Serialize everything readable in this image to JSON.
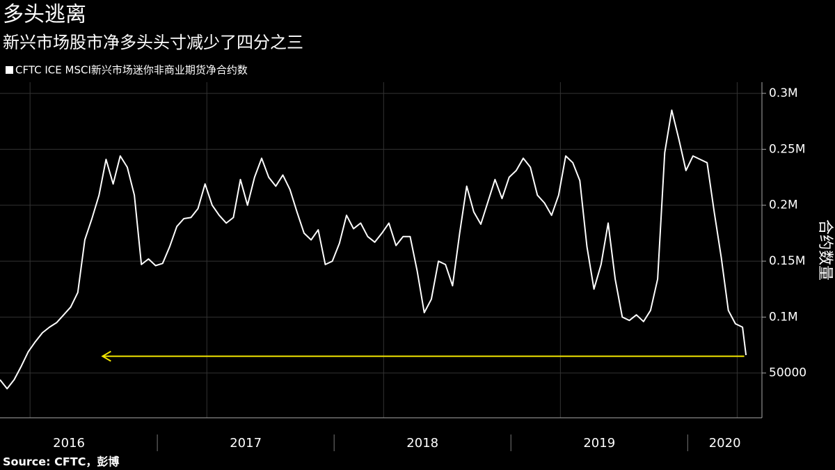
{
  "chart_data": {
    "type": "line",
    "title": "多头逃离",
    "subtitle": "新兴市场股市净多头头寸减少了四分之三",
    "y_axis_label": "合约数量",
    "source": "Source: CFTC，彭博",
    "series": [
      {
        "name": "CFTC ICE MSCI新兴市场迷你非商业期货净合约数",
        "color": "#ffffff",
        "x": [
          2016.11,
          2016.15,
          2016.19,
          2016.23,
          2016.27,
          2016.31,
          2016.35,
          2016.39,
          2016.43,
          2016.47,
          2016.51,
          2016.55,
          2016.59,
          2016.63,
          2016.67,
          2016.71,
          2016.75,
          2016.79,
          2016.83,
          2016.87,
          2016.91,
          2016.95,
          2016.99,
          2017.03,
          2017.07,
          2017.11,
          2017.15,
          2017.19,
          2017.23,
          2017.27,
          2017.31,
          2017.35,
          2017.39,
          2017.43,
          2017.47,
          2017.51,
          2017.55,
          2017.59,
          2017.63,
          2017.67,
          2017.71,
          2017.75,
          2017.79,
          2017.83,
          2017.87,
          2017.91,
          2017.95,
          2017.99,
          2018.03,
          2018.07,
          2018.11,
          2018.15,
          2018.19,
          2018.23,
          2018.27,
          2018.31,
          2018.35,
          2018.39,
          2018.43,
          2018.47,
          2018.51,
          2018.55,
          2018.59,
          2018.63,
          2018.67,
          2018.71,
          2018.75,
          2018.79,
          2018.83,
          2018.87,
          2018.91,
          2018.95,
          2018.99,
          2019.03,
          2019.07,
          2019.11,
          2019.15,
          2019.19,
          2019.23,
          2019.27,
          2019.31,
          2019.35,
          2019.39,
          2019.43,
          2019.47,
          2019.51,
          2019.55,
          2019.59,
          2019.63,
          2019.67,
          2019.71,
          2019.75,
          2019.79,
          2019.83,
          2019.87,
          2019.91,
          2019.95,
          2019.99,
          2020.03,
          2020.07,
          2020.11,
          2020.15,
          2020.19,
          2020.23,
          2020.27,
          2020.31,
          2020.33
        ],
        "values": [
          44000,
          36000,
          44000,
          56000,
          69000,
          78000,
          86000,
          91000,
          95000,
          102000,
          109000,
          122000,
          169000,
          188000,
          209000,
          241000,
          219000,
          244000,
          234000,
          209000,
          147000,
          152000,
          146000,
          148000,
          163000,
          181000,
          188000,
          189000,
          197000,
          219000,
          200000,
          191000,
          184000,
          189000,
          223000,
          200000,
          225000,
          242000,
          225000,
          217000,
          227000,
          214000,
          194000,
          175000,
          169000,
          178000,
          147000,
          150000,
          166000,
          191000,
          179000,
          184000,
          172000,
          167000,
          175000,
          184000,
          164000,
          172000,
          172000,
          141000,
          104000,
          116000,
          150000,
          147000,
          128000,
          175000,
          217000,
          194000,
          183000,
          203000,
          223000,
          206000,
          225000,
          231000,
          242000,
          234000,
          209000,
          202000,
          191000,
          209000,
          244000,
          238000,
          222000,
          163000,
          125000,
          147000,
          184000,
          134000,
          100000,
          97000,
          102000,
          96000,
          106000,
          134000,
          247000,
          285000,
          259000,
          231000,
          244000,
          241000,
          238000,
          194000,
          153000,
          106000,
          94000,
          91000,
          66000
        ]
      }
    ],
    "arrow": {
      "value": 65000,
      "x_from": 2020.32,
      "x_to": 2016.69,
      "color": "#f2e600"
    },
    "xlim": [
      2016.11,
      2020.42
    ],
    "xticks": [
      {
        "value": 2016.5,
        "label": "2016"
      },
      {
        "value": 2017.5,
        "label": "2017"
      },
      {
        "value": 2018.5,
        "label": "2018"
      },
      {
        "value": 2019.5,
        "label": "2019"
      },
      {
        "value": 2020.21,
        "label": "2020"
      }
    ],
    "year_separators": [
      2017,
      2018,
      2019,
      2020
    ],
    "xgrid": [
      2016.28,
      2017.28,
      2018.28,
      2019.28,
      2020.28
    ],
    "ylim": [
      10000,
      310000
    ],
    "yticks": [
      50000,
      {
        "value": 100000,
        "label": "0.1M"
      },
      {
        "value": 150000,
        "label": "0.15M"
      },
      {
        "value": 200000,
        "label": "0.2M"
      },
      {
        "value": 250000,
        "label": "0.25M"
      },
      {
        "value": 300000,
        "label": "0.3M"
      }
    ],
    "grid": true,
    "y_axis_side": "right"
  }
}
